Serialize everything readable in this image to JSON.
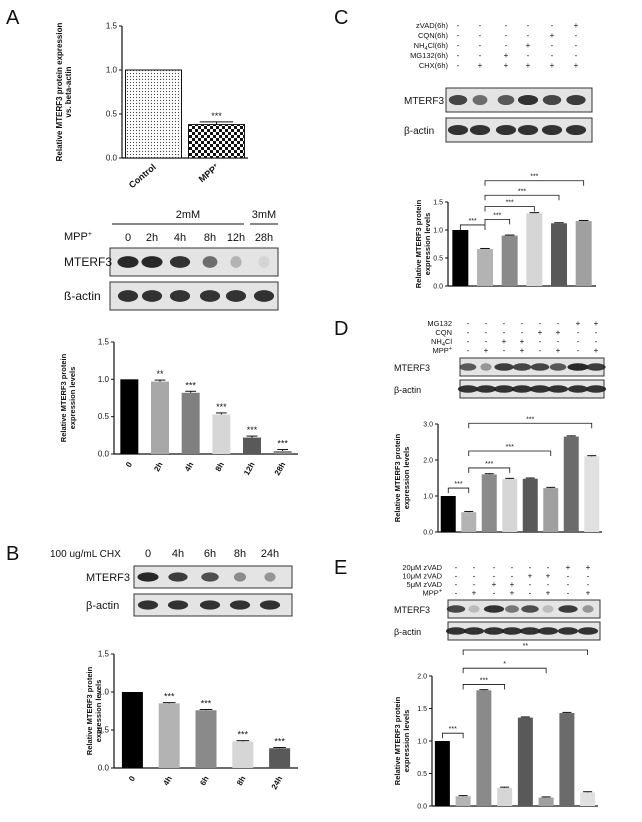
{
  "figure": {
    "panel_labels": [
      "A",
      "B",
      "C",
      "D",
      "E"
    ],
    "colors": {
      "black": "#000000",
      "dark": "#595959",
      "mid": "#8a8a8a",
      "light": "#b3b3b3",
      "pale": "#d6d6d6",
      "blot_bg": "#e4e4e4",
      "band": "#1e1e1e"
    }
  },
  "panelA": {
    "blot": {
      "conc_labels": [
        "2mM",
        "3mM"
      ],
      "mpp_label": "MPP",
      "mpp_sup": "+",
      "lanes": [
        "0",
        "2h",
        "4h",
        "8h",
        "12h",
        "28h"
      ],
      "rows": [
        {
          "label": "MTERF3",
          "bands": [
            0.95,
            0.95,
            0.9,
            0.6,
            0.25,
            0.05
          ]
        },
        {
          "label": "ß-actin",
          "bands": [
            0.9,
            0.9,
            0.9,
            0.9,
            0.9,
            0.9
          ]
        }
      ]
    }
  },
  "panelB": {
    "blot": {
      "treat_label": "100 ug/mL CHX",
      "lanes": [
        "0",
        "4h",
        "6h",
        "8h",
        "24h"
      ],
      "rows": [
        {
          "label": "MTERF3",
          "bands": [
            0.95,
            0.85,
            0.75,
            0.45,
            0.4
          ]
        },
        {
          "label": "β-actin",
          "bands": [
            0.9,
            0.9,
            0.9,
            0.9,
            0.9
          ]
        }
      ]
    }
  },
  "panelC": {
    "matrix_rows": [
      {
        "label": "zVAD(6h)",
        "signs": [
          "-",
          "-",
          "-",
          "-",
          "-",
          "+"
        ]
      },
      {
        "label": "CQN(6h)",
        "signs": [
          "-",
          "-",
          "-",
          "-",
          "+",
          "-"
        ]
      },
      {
        "label": "NH",
        "sub": "4",
        "rest": "Cl(6h)",
        "signs": [
          "-",
          "-",
          "-",
          "+",
          "-",
          "-"
        ]
      },
      {
        "label": "MG132(6h)",
        "signs": [
          "-",
          "-",
          "+",
          "-",
          "-",
          "-"
        ]
      },
      {
        "label": "CHX(6h)",
        "signs": [
          "-",
          "+",
          "+",
          "+",
          "+",
          "+"
        ]
      }
    ],
    "blot_rows": [
      {
        "label": "MTERF3",
        "bands": [
          0.8,
          0.6,
          0.7,
          0.9,
          0.8,
          0.85
        ]
      },
      {
        "label": "β-actin",
        "bands": [
          0.9,
          0.9,
          0.9,
          0.9,
          0.9,
          0.9
        ]
      }
    ]
  },
  "panelD": {
    "matrix_rows": [
      {
        "label": "MG132",
        "signs": [
          "-",
          "-",
          "-",
          "-",
          "-",
          "-",
          "+",
          "+"
        ]
      },
      {
        "label": "CQN",
        "signs": [
          "-",
          "-",
          "-",
          "-",
          "+",
          "+",
          "-",
          "-"
        ]
      },
      {
        "label": "NH",
        "sub": "4",
        "rest": "Cl",
        "signs": [
          "-",
          "-",
          "+",
          "+",
          "-",
          "-",
          "-",
          "-"
        ]
      },
      {
        "label": "MPP",
        "sup": "+",
        "signs": [
          "-",
          "+",
          "-",
          "+",
          "-",
          "+",
          "-",
          "+"
        ]
      }
    ],
    "blot_rows": [
      {
        "label": "MTERF3",
        "bands": [
          0.7,
          0.4,
          0.85,
          0.8,
          0.8,
          0.7,
          0.95,
          0.85
        ]
      },
      {
        "label": "β-actin",
        "bands": [
          0.9,
          0.9,
          0.9,
          0.9,
          0.9,
          0.9,
          0.9,
          0.9
        ]
      }
    ]
  },
  "panelE": {
    "matrix_rows": [
      {
        "label": "20μM zVAD",
        "signs": [
          "-",
          "-",
          "-",
          "-",
          "-",
          "-",
          "+",
          "+"
        ]
      },
      {
        "label": "10μM zVAD",
        "signs": [
          "-",
          "-",
          "-",
          "-",
          "+",
          "+",
          "-",
          "-"
        ]
      },
      {
        "label": "5μM zVAD",
        "signs": [
          "-",
          "-",
          "+",
          "+",
          "-",
          "-",
          "-",
          "-"
        ]
      },
      {
        "label": "MPP",
        "sup": "+",
        "signs": [
          "-",
          "+",
          "-",
          "+",
          "-",
          "+",
          "-",
          "+"
        ]
      }
    ],
    "blot_rows": [
      {
        "label": "MTERF3",
        "bands": [
          0.8,
          0.2,
          0.9,
          0.55,
          0.75,
          0.2,
          0.85,
          0.4
        ]
      },
      {
        "label": "β-actin",
        "bands": [
          0.9,
          0.9,
          0.9,
          0.9,
          0.9,
          0.9,
          0.9,
          0.9
        ]
      }
    ]
  },
  "chart_data": [
    {
      "id": "A1",
      "type": "bar",
      "categories": [
        "Control",
        "MPP+"
      ],
      "values": [
        1.0,
        0.38
      ],
      "errors": [
        0,
        0.03
      ],
      "ylabel_lines": [
        "Relative MTERF3 protein expression",
        "vs. beta-actin"
      ],
      "ylim": [
        0,
        1.5
      ],
      "yticks": [
        "0.0",
        "0.5",
        "1.0",
        "1.5"
      ],
      "patterns": [
        "dots",
        "checker"
      ],
      "sig": [
        {
          "bar": 1,
          "text": "***"
        }
      ],
      "brackets": []
    },
    {
      "id": "A2",
      "type": "bar",
      "categories": [
        "0",
        "2h",
        "4h",
        "8h",
        "12h",
        "28h"
      ],
      "values": [
        1.0,
        0.97,
        0.82,
        0.53,
        0.22,
        0.04
      ],
      "errors": [
        0,
        0.02,
        0.02,
        0.02,
        0.02,
        0.02
      ],
      "ylabel_lines": [
        "Relative MTERF3 protein",
        "expression levels"
      ],
      "ylim": [
        0,
        1.5
      ],
      "yticks": [
        "0.0",
        "0.5",
        "1.0",
        "1.5"
      ],
      "colors": [
        "#000000",
        "#a8a8a8",
        "#808080",
        "#d6d6d6",
        "#595959",
        "#8a8a8a"
      ],
      "sig": [
        {
          "bar": 1,
          "text": "**"
        },
        {
          "bar": 2,
          "text": "***"
        },
        {
          "bar": 3,
          "text": "***"
        },
        {
          "bar": 4,
          "text": "***"
        },
        {
          "bar": 5,
          "text": "***"
        }
      ],
      "brackets": []
    },
    {
      "id": "B",
      "type": "bar",
      "categories": [
        "0",
        "4h",
        "6h",
        "8h",
        "24h"
      ],
      "values": [
        1.0,
        0.85,
        0.76,
        0.35,
        0.26
      ],
      "errors": [
        0,
        0.01,
        0.01,
        0.01,
        0.01
      ],
      "ylabel_lines": [
        "Relative MTERF3 protein",
        "expression levels"
      ],
      "ylim": [
        0,
        1.5
      ],
      "yticks": [
        "0.0",
        "0.5",
        "1.0",
        "1.5"
      ],
      "colors": [
        "#000000",
        "#b3b3b3",
        "#8a8a8a",
        "#d6d6d6",
        "#595959"
      ],
      "sig": [
        {
          "bar": 1,
          "text": "***"
        },
        {
          "bar": 2,
          "text": "***"
        },
        {
          "bar": 3,
          "text": "***"
        },
        {
          "bar": 4,
          "text": "***"
        }
      ],
      "brackets": []
    },
    {
      "id": "C",
      "type": "bar",
      "categories": [
        "",
        "",
        "",
        "",
        "",
        ""
      ],
      "values": [
        1.0,
        0.66,
        0.9,
        1.3,
        1.12,
        1.16
      ],
      "errors": [
        0,
        0.01,
        0.01,
        0.01,
        0.01,
        0.01
      ],
      "ylabel_lines": [
        "Relative MTERF3 protein",
        "expression levels"
      ],
      "ylim": [
        0,
        1.5
      ],
      "yticks": [
        "0.0",
        "0.5",
        "1.0",
        "1.5"
      ],
      "colors": [
        "#000000",
        "#b3b3b3",
        "#8a8a8a",
        "#d6d6d6",
        "#595959",
        "#a0a0a0"
      ],
      "sig": [],
      "brackets": [
        {
          "from": 0,
          "to": 1,
          "level": 1.09,
          "text": "***"
        },
        {
          "from": 1,
          "to": 2,
          "level": 1.19,
          "text": "***"
        },
        {
          "from": 1,
          "to": 3,
          "level": 1.42,
          "text": "***"
        },
        {
          "from": 1,
          "to": 4,
          "level": 1.62,
          "text": "***"
        },
        {
          "from": 1,
          "to": 5,
          "level": 1.88,
          "text": "***"
        }
      ]
    },
    {
      "id": "D",
      "type": "bar",
      "categories": [
        "",
        "",
        "",
        "",
        "",
        "",
        "",
        ""
      ],
      "values": [
        1.0,
        0.55,
        1.6,
        1.47,
        1.48,
        1.22,
        2.65,
        2.1
      ],
      "errors": [
        0,
        0.02,
        0.02,
        0.02,
        0.02,
        0.02,
        0.02,
        0.02
      ],
      "ylabel_lines": [
        "Relative MTERF3 protein",
        "expression levels"
      ],
      "ylim": [
        0,
        3.0
      ],
      "yticks": [
        "0.0",
        "1.0",
        "2.0",
        "3.0"
      ],
      "colors": [
        "#000000",
        "#b3b3b3",
        "#8a8a8a",
        "#d6d6d6",
        "#595959",
        "#a0a0a0",
        "#6b6b6b",
        "#e0e0e0"
      ],
      "sig": [],
      "brackets": [
        {
          "from": 0,
          "to": 1,
          "level": 1.22,
          "text": "***"
        },
        {
          "from": 1,
          "to": 3,
          "level": 1.78,
          "text": "***"
        },
        {
          "from": 1,
          "to": 5,
          "level": 2.25,
          "text": "***"
        },
        {
          "from": 1,
          "to": 7,
          "level": 3.02,
          "text": "***"
        }
      ]
    },
    {
      "id": "E",
      "type": "bar",
      "categories": [
        "",
        "",
        "",
        "",
        "",
        "",
        "",
        ""
      ],
      "values": [
        1.0,
        0.15,
        1.78,
        0.28,
        1.36,
        0.13,
        1.43,
        0.21
      ],
      "errors": [
        0,
        0.01,
        0.01,
        0.01,
        0.01,
        0.01,
        0.01,
        0.01
      ],
      "ylabel_lines": [
        "Relative MTERF3 protein",
        "expression levels"
      ],
      "ylim": [
        0,
        2.0
      ],
      "yticks": [
        "0.0",
        "0.5",
        "1.0",
        "1.5",
        "2.0"
      ],
      "colors": [
        "#000000",
        "#b3b3b3",
        "#8a8a8a",
        "#d6d6d6",
        "#595959",
        "#a0a0a0",
        "#6b6b6b",
        "#e0e0e0"
      ],
      "sig": [],
      "brackets": [
        {
          "from": 0,
          "to": 1,
          "level": 1.12,
          "text": "***"
        },
        {
          "from": 1,
          "to": 3,
          "level": 1.87,
          "text": "***"
        },
        {
          "from": 1,
          "to": 5,
          "level": 2.12,
          "text": "*"
        },
        {
          "from": 1,
          "to": 7,
          "level": 2.4,
          "text": "**"
        }
      ]
    }
  ]
}
